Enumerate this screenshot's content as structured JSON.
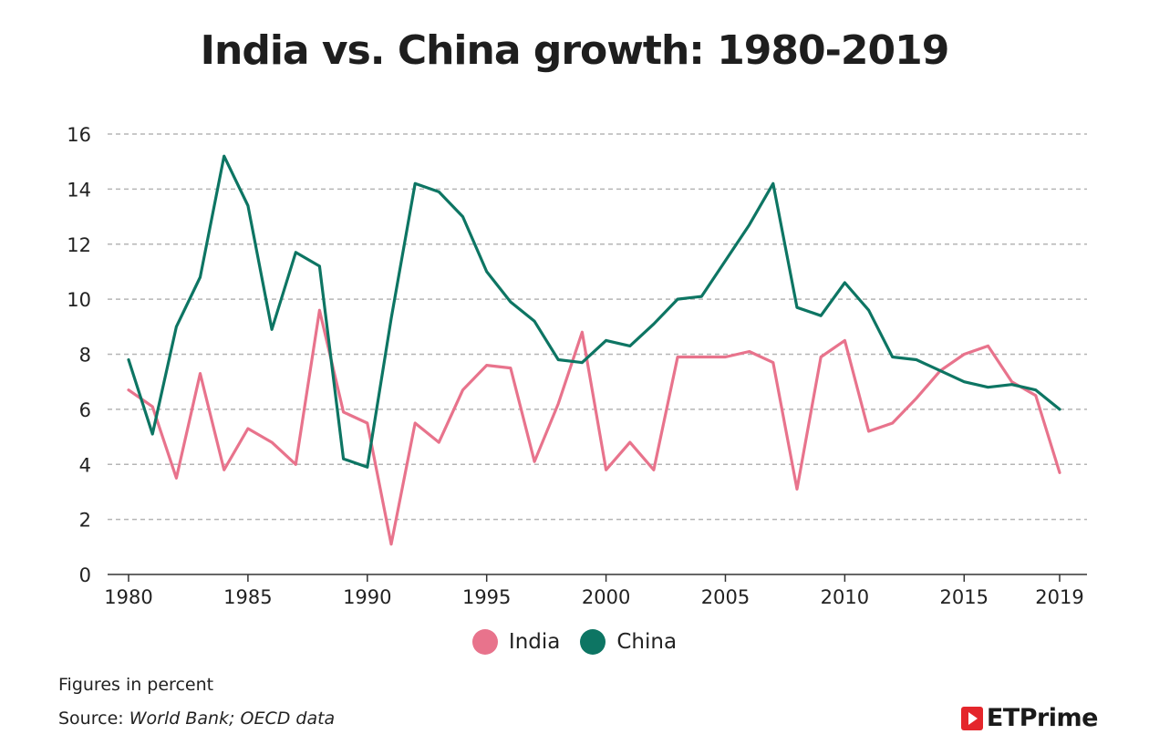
{
  "chart_data": {
    "type": "line",
    "title": "India vs. China growth: 1980-2019",
    "xlabel": "",
    "ylabel": "",
    "x": [
      1980,
      1981,
      1982,
      1983,
      1984,
      1985,
      1986,
      1987,
      1988,
      1989,
      1990,
      1991,
      1992,
      1993,
      1994,
      1995,
      1996,
      1997,
      1998,
      1999,
      2000,
      2001,
      2002,
      2003,
      2004,
      2005,
      2006,
      2007,
      2008,
      2009,
      2010,
      2011,
      2012,
      2013,
      2014,
      2015,
      2016,
      2017,
      2018,
      2019
    ],
    "xlim": [
      1980,
      2019
    ],
    "ylim": [
      0,
      16
    ],
    "xticks": [
      "1980",
      "1985",
      "1990",
      "1995",
      "2000",
      "2005",
      "2010",
      "2015",
      "2019"
    ],
    "yticks": [
      "0",
      "2",
      "4",
      "6",
      "8",
      "10",
      "12",
      "14",
      "16"
    ],
    "grid": true,
    "legend_position": "bottom-center",
    "series": [
      {
        "name": "India",
        "color": "#e8738c",
        "values": [
          6.7,
          6.1,
          3.5,
          7.3,
          3.8,
          5.3,
          4.8,
          4.0,
          9.6,
          5.9,
          5.5,
          1.1,
          5.5,
          4.8,
          6.7,
          7.6,
          7.5,
          4.1,
          6.2,
          8.8,
          3.8,
          4.8,
          3.8,
          7.9,
          7.9,
          7.9,
          8.1,
          7.7,
          3.1,
          7.9,
          8.5,
          5.2,
          5.5,
          6.4,
          7.4,
          8.0,
          8.3,
          7.0,
          6.5,
          3.7
        ]
      },
      {
        "name": "China",
        "color": "#0d7563",
        "values": [
          7.8,
          5.1,
          9.0,
          10.8,
          15.2,
          13.4,
          8.9,
          11.7,
          11.2,
          4.2,
          3.9,
          9.3,
          14.2,
          13.9,
          13.0,
          11.0,
          9.9,
          9.2,
          7.8,
          7.7,
          8.5,
          8.3,
          9.1,
          10.0,
          10.1,
          11.4,
          12.7,
          14.2,
          9.7,
          9.4,
          10.6,
          9.6,
          7.9,
          7.8,
          7.4,
          7.0,
          6.8,
          6.9,
          6.7,
          6.0
        ]
      }
    ]
  },
  "footnote": "Figures in percent",
  "source": {
    "label": "Source:",
    "text": "World Bank; OECD data"
  },
  "brand": {
    "name": "ETPrime",
    "color": "#e4262b"
  }
}
